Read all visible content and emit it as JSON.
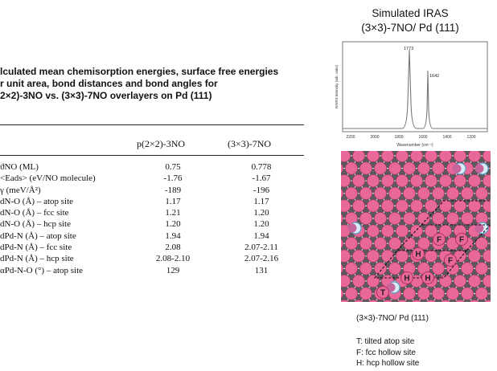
{
  "caption": {
    "line1": "lculated mean chemisorption energies, surface free energies",
    "line2": "r unit area, bond distances and bond angles for",
    "line3": "2×2)-3NO vs. (3×3)-7NO overlayers on Pd (111)"
  },
  "table": {
    "col1": "p(2×2)-3NO",
    "col2": "(3×3)-7NO",
    "rows": [
      {
        "label": "ϑNO (ML)",
        "v1": "0.75",
        "v2": "0.778"
      },
      {
        "label": "<Eads> (eV/NO molecule)",
        "v1": "-1.76",
        "v2": "-1.67"
      },
      {
        "label": "γ (meV/Å²)",
        "v1": "-189",
        "v2": "-196"
      },
      {
        "label": "dN-O (Å) – atop site",
        "v1": "1.17",
        "v2": "1.17"
      },
      {
        "label": "dN-O (Å) – fcc site",
        "v1": "1.21",
        "v2": "1.20"
      },
      {
        "label": "dN-O (Å) – hcp site",
        "v1": "1.20",
        "v2": "1.20"
      },
      {
        "label": "dPd-N (Å) – atop site",
        "v1": "1.94",
        "v2": "1.94"
      },
      {
        "label": "dPd-N (Å) – fcc site",
        "v1": "2.08",
        "v2": "2.07-2.11"
      },
      {
        "label": "dPd-N (Å) – hcp site",
        "v1": "2.08-2.10",
        "v2": "2.07-2.16"
      },
      {
        "label": "αPd-N-O (°) – atop site",
        "v1": "129",
        "v2": "131"
      }
    ]
  },
  "iras": {
    "title_line1": "Simulated IRAS",
    "title_line2": "(3×3)-7NO/ Pd (111)",
    "ylabel": "RAIRS intensity (arb. units)",
    "xlabel": "Wavenumber (cm⁻¹)",
    "xticks": [
      "2200",
      "2000",
      "1800",
      "1600",
      "1400",
      "1200"
    ],
    "peak1": "1773",
    "peak2": "1642"
  },
  "lattice": {
    "caption": "(3×3)-7NO/ Pd (111)",
    "site_letters": [
      "F",
      "F",
      "H",
      "F",
      "H",
      "H",
      "T"
    ],
    "colors": {
      "pd": "#e8689a",
      "pd_edge": "#b03060",
      "o_atom": "#d9ecf5",
      "o_edge": "#5a9ec4",
      "tilted": "#c8649c"
    }
  },
  "legend": {
    "t": "T: tilted atop site",
    "f": "F: fcc hollow site",
    "h": "H: hcp hollow site"
  }
}
